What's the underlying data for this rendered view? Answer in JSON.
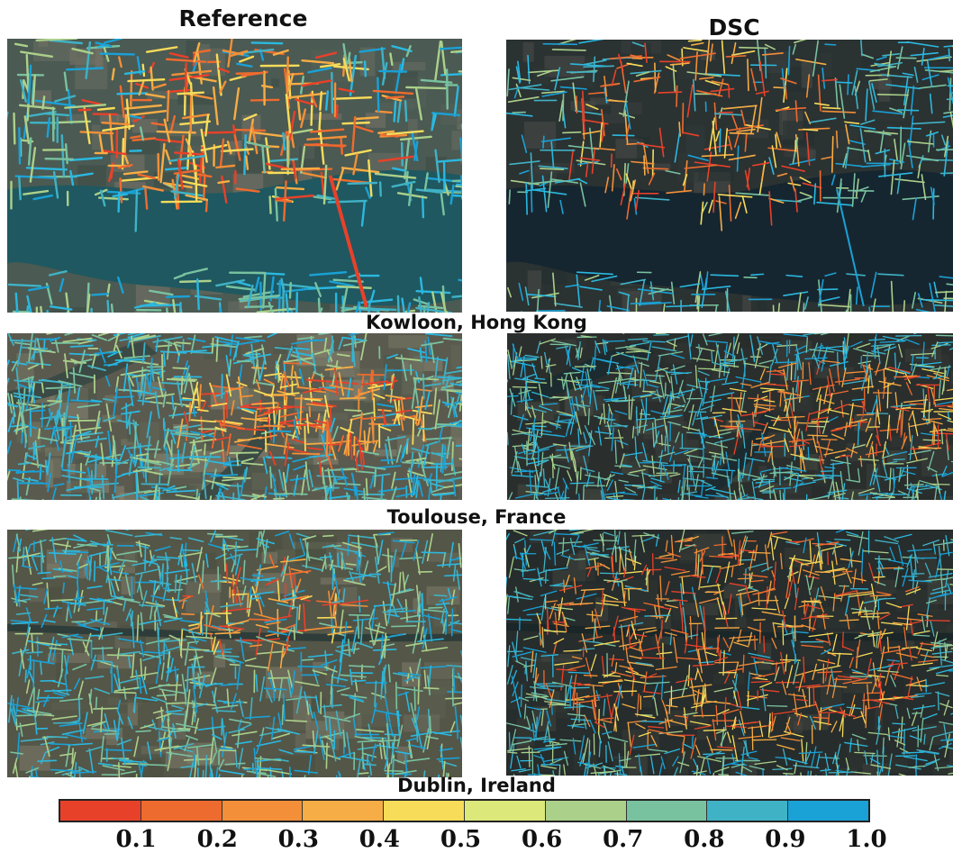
{
  "columns": {
    "left": "Reference",
    "right": "DSC"
  },
  "rows": [
    {
      "city": "Kowloon, Hong Kong"
    },
    {
      "city": "Toulouse, France"
    },
    {
      "city": "Dublin, Ireland"
    }
  ],
  "colorbar": {
    "colors": [
      "#e8412a",
      "#ee6b2f",
      "#f28f38",
      "#f7ad45",
      "#f7dc5a",
      "#dde87a",
      "#abd08a",
      "#79c2a0",
      "#3fb2c6",
      "#1aa1d6"
    ],
    "ticks": [
      "0.1",
      "0.2",
      "0.3",
      "0.4",
      "0.5",
      "0.6",
      "0.7",
      "0.8",
      "0.9",
      "1.0"
    ]
  }
}
